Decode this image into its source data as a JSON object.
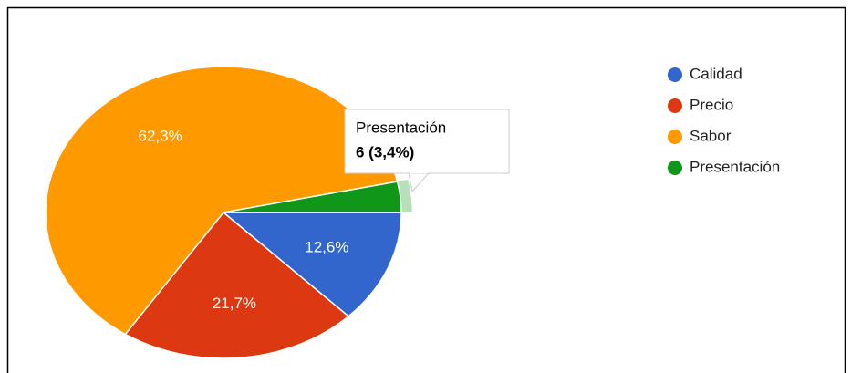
{
  "chart_data": {
    "type": "pie",
    "categories": [
      "Calidad",
      "Precio",
      "Sabor",
      "Presentación"
    ],
    "values": [
      12.6,
      21.7,
      62.3,
      3.4
    ],
    "value_labels": [
      "12,6%",
      "21,7%",
      "62,3%",
      null
    ],
    "colors": [
      "#3366cc",
      "#dc3912",
      "#ff9900",
      "#109618"
    ],
    "legend": "right",
    "tooltip": {
      "title": "Presentación",
      "text": "6 (3,4%)"
    }
  }
}
